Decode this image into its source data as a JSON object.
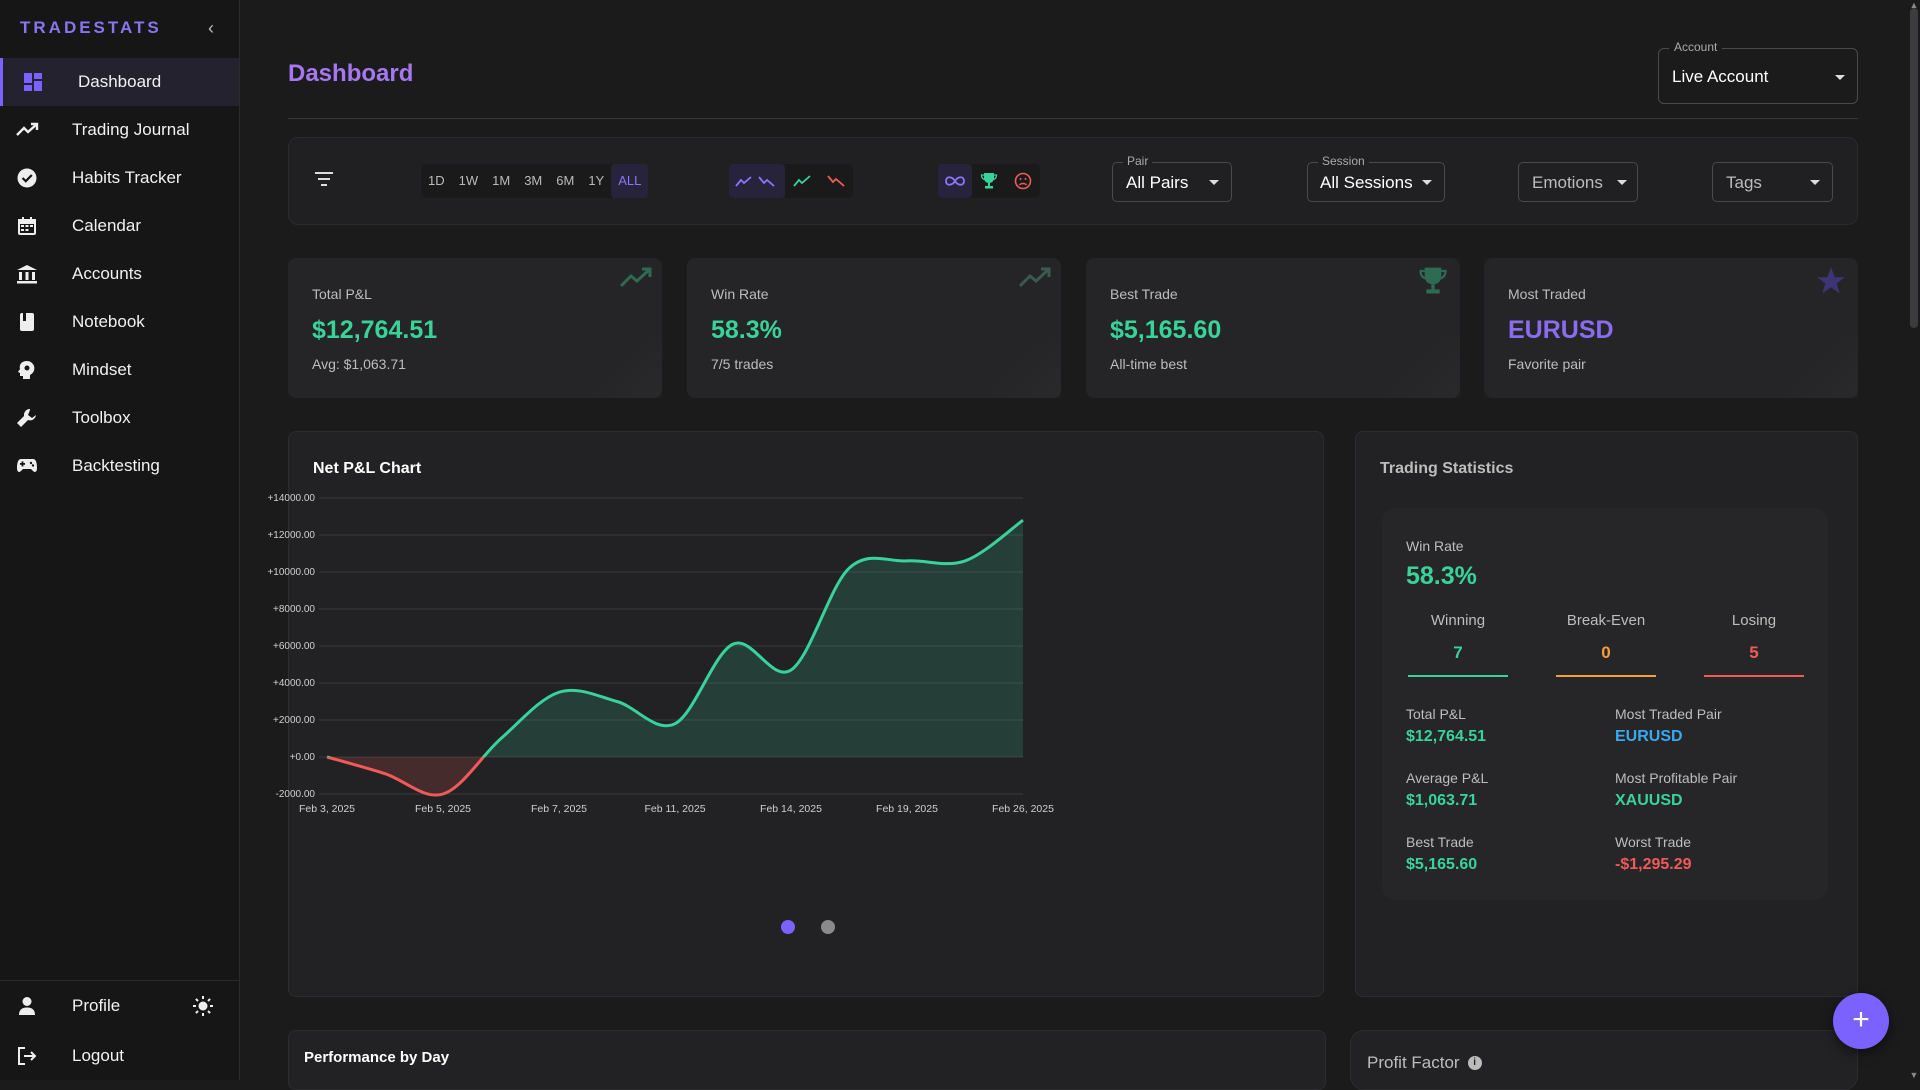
{
  "brand": "TRADESTATS",
  "sidebar": {
    "items": [
      {
        "label": "Dashboard",
        "icon": "dashboard-icon"
      },
      {
        "label": "Trading Journal",
        "icon": "trend-icon"
      },
      {
        "label": "Habits Tracker",
        "icon": "check-circle-icon"
      },
      {
        "label": "Calendar",
        "icon": "calendar-icon"
      },
      {
        "label": "Accounts",
        "icon": "bank-icon"
      },
      {
        "label": "Notebook",
        "icon": "book-icon"
      },
      {
        "label": "Mindset",
        "icon": "brain-icon"
      },
      {
        "label": "Toolbox",
        "icon": "wrench-icon"
      },
      {
        "label": "Backtesting",
        "icon": "gamepad-icon"
      }
    ],
    "profile": "Profile",
    "logout": "Logout"
  },
  "header": {
    "title": "Dashboard",
    "account_label": "Account",
    "account_value": "Live Account"
  },
  "filters": {
    "ranges": [
      "1D",
      "1W",
      "1M",
      "3M",
      "6M",
      "1Y",
      "ALL"
    ],
    "active_range": "ALL",
    "pair_label": "Pair",
    "pair_value": "All Pairs",
    "session_label": "Session",
    "session_value": "All Sessions",
    "emotions": "Emotions",
    "tags": "Tags"
  },
  "cards": [
    {
      "label": "Total P&L",
      "value": "$12,764.51",
      "sub": "Avg: $1,063.71"
    },
    {
      "label": "Win Rate",
      "value": "58.3%",
      "sub": "7/5 trades"
    },
    {
      "label": "Best Trade",
      "value": "$5,165.60",
      "sub": "All-time best"
    },
    {
      "label": "Most Traded",
      "value": "EURUSD",
      "sub": "Favorite pair"
    }
  ],
  "net_chart": {
    "title": "Net P&L Chart"
  },
  "chart_data": {
    "type": "area",
    "title": "Net P&L Chart",
    "xlabel": "",
    "ylabel": "",
    "ylim": [
      -2000,
      14000
    ],
    "yticks": [
      "+14000.00",
      "+12000.00",
      "+10000.00",
      "+8000.00",
      "+6000.00",
      "+4000.00",
      "+2000.00",
      "+0.00",
      "-2000.00"
    ],
    "x_ticks": [
      "Feb 3, 2025",
      "Feb 5, 2025",
      "Feb 7, 2025",
      "Feb 11, 2025",
      "Feb 14, 2025",
      "Feb 19, 2025",
      "Feb 26, 2025"
    ],
    "x": [
      "Feb 3, 2025",
      "Feb 4, 2025",
      "Feb 5, 2025",
      "Feb 6, 2025",
      "Feb 7, 2025",
      "Feb 10, 2025",
      "Feb 11, 2025",
      "Feb 12, 2025",
      "Feb 14, 2025",
      "Feb 18, 2025",
      "Feb 19, 2025",
      "Feb 24, 2025",
      "Feb 26, 2025"
    ],
    "values": [
      0,
      -900,
      -2000,
      1000,
      3500,
      3000,
      1800,
      6100,
      4700,
      10200,
      10600,
      10600,
      12800
    ],
    "colors": {
      "positive": "#38d39a",
      "negative": "#f05a5a"
    }
  },
  "trading_stats": {
    "title": "Trading Statistics",
    "win_rate_label": "Win Rate",
    "win_rate": "58.3%",
    "winning_label": "Winning",
    "winning": "7",
    "breakeven_label": "Break-Even",
    "breakeven": "0",
    "losing_label": "Losing",
    "losing": "5",
    "total_pl_label": "Total P&L",
    "total_pl": "$12,764.51",
    "most_traded_label": "Most Traded Pair",
    "most_traded": "EURUSD",
    "avg_pl_label": "Average P&L",
    "avg_pl": "$1,063.71",
    "most_profitable_label": "Most Profitable Pair",
    "most_profitable": "XAUUSD",
    "best_trade_label": "Best Trade",
    "best_trade": "$5,165.60",
    "worst_trade_label": "Worst Trade",
    "worst_trade": "-$1,295.29"
  },
  "performance": {
    "title": "Performance by Day"
  },
  "profit_factor": {
    "title": "Profit Factor"
  },
  "fab": "+",
  "colors": {
    "accent": "#7b61ff",
    "green": "#38d39a",
    "red": "#f05a5a",
    "orange": "#f0a040",
    "blue": "#3aa8f0"
  }
}
